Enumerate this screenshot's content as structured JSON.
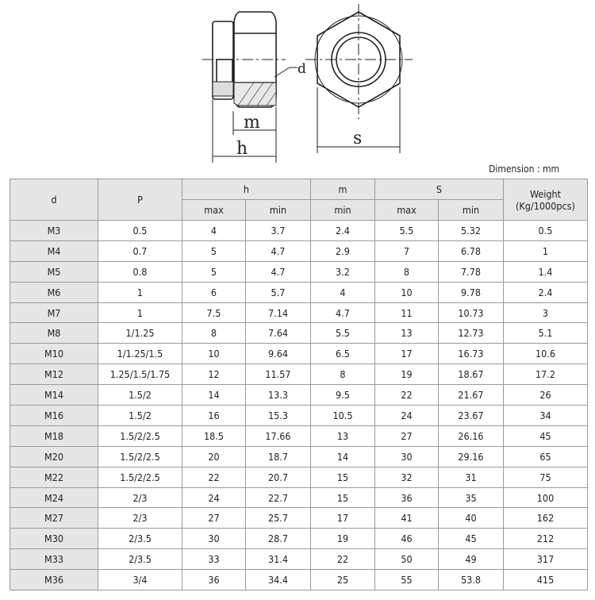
{
  "drawing": {
    "labels": {
      "d": "d",
      "m": "m",
      "h": "h",
      "s": "s"
    }
  },
  "unit": "Dimension : mm",
  "headers": {
    "d": "d",
    "p": "P",
    "h": "h",
    "m": "m",
    "s": "S",
    "weight_line1": "Weight",
    "weight_line2": "(Kg/1000pcs)",
    "max": "max",
    "min": "min"
  },
  "rows": [
    [
      "M3",
      "0.5",
      "4",
      "3.7",
      "2.4",
      "5.5",
      "5.32",
      "0.5"
    ],
    [
      "M4",
      "0.7",
      "5",
      "4.7",
      "2.9",
      "7",
      "6.78",
      "1"
    ],
    [
      "M5",
      "0.8",
      "5",
      "4.7",
      "3.2",
      "8",
      "7.78",
      "1.4"
    ],
    [
      "M6",
      "1",
      "6",
      "5.7",
      "4",
      "10",
      "9.78",
      "2.4"
    ],
    [
      "M7",
      "1",
      "7.5",
      "7.14",
      "4.7",
      "11",
      "10.73",
      "3"
    ],
    [
      "M8",
      "1/1.25",
      "8",
      "7.64",
      "5.5",
      "13",
      "12.73",
      "5.1"
    ],
    [
      "M10",
      "1/1.25/1.5",
      "10",
      "9.64",
      "6.5",
      "17",
      "16.73",
      "10.6"
    ],
    [
      "M12",
      "1.25/1.5/1.75",
      "12",
      "11.57",
      "8",
      "19",
      "18.67",
      "17.2"
    ],
    [
      "M14",
      "1.5/2",
      "14",
      "13.3",
      "9.5",
      "22",
      "21.67",
      "26"
    ],
    [
      "M16",
      "1.5/2",
      "16",
      "15.3",
      "10.5",
      "24",
      "23.67",
      "34"
    ],
    [
      "M18",
      "1.5/2/2.5",
      "18.5",
      "17.66",
      "13",
      "27",
      "26.16",
      "45"
    ],
    [
      "M20",
      "1.5/2/2.5",
      "20",
      "18.7",
      "14",
      "30",
      "29.16",
      "65"
    ],
    [
      "M22",
      "1.5/2/2.5",
      "22",
      "20.7",
      "15",
      "32",
      "31",
      "75"
    ],
    [
      "M24",
      "2/3",
      "24",
      "22.7",
      "15",
      "36",
      "35",
      "100"
    ],
    [
      "M27",
      "2/3",
      "27",
      "25.7",
      "17",
      "41",
      "40",
      "162"
    ],
    [
      "M30",
      "2/3.5",
      "30",
      "28.7",
      "19",
      "46",
      "45",
      "212"
    ],
    [
      "M33",
      "2/3.5",
      "33",
      "31.4",
      "22",
      "50",
      "49",
      "317"
    ],
    [
      "M36",
      "3/4",
      "36",
      "34.4",
      "25",
      "55",
      "53.8",
      "415"
    ]
  ]
}
